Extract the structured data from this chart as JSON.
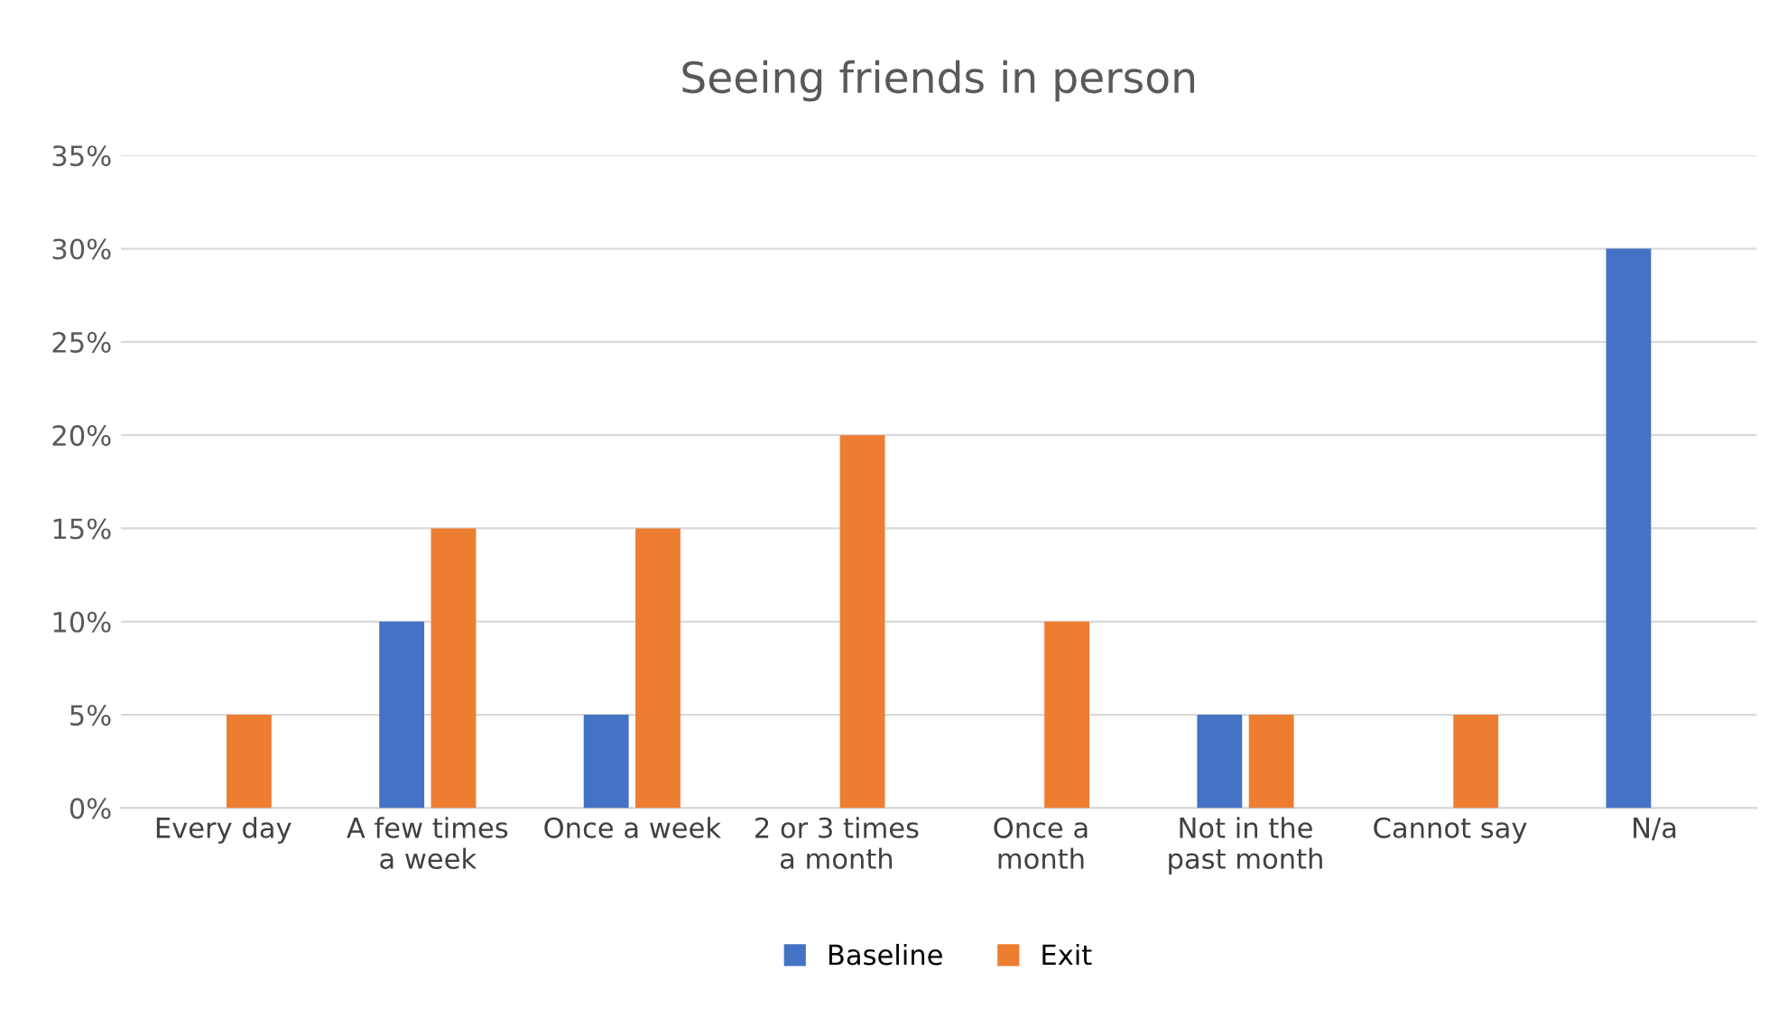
{
  "chart_data": {
    "type": "bar",
    "title": "Seeing friends in person",
    "categories": [
      "Every day",
      "A few times\na week",
      "Once a week",
      "2 or 3 times\na month",
      "Once a\nmonth",
      "Not in the\npast month",
      "Cannot say",
      "N/a"
    ],
    "series": [
      {
        "name": "Baseline",
        "color": "#4472c4",
        "values": [
          0,
          10,
          5,
          0,
          0,
          5,
          0,
          30
        ]
      },
      {
        "name": "Exit",
        "color": "#ed7d31",
        "values": [
          5,
          15,
          15,
          20,
          10,
          5,
          5,
          0
        ]
      }
    ],
    "ylim": [
      0,
      35
    ],
    "yticks": [
      {
        "value": 0,
        "label": "0%"
      },
      {
        "value": 5,
        "label": "5%"
      },
      {
        "value": 10,
        "label": "10%"
      },
      {
        "value": 15,
        "label": "15%"
      },
      {
        "value": 20,
        "label": "20%"
      },
      {
        "value": 25,
        "label": "25%"
      },
      {
        "value": 30,
        "label": "30%"
      },
      {
        "value": 35,
        "label": "35%"
      }
    ],
    "grid": "y",
    "legend": "bottom"
  }
}
